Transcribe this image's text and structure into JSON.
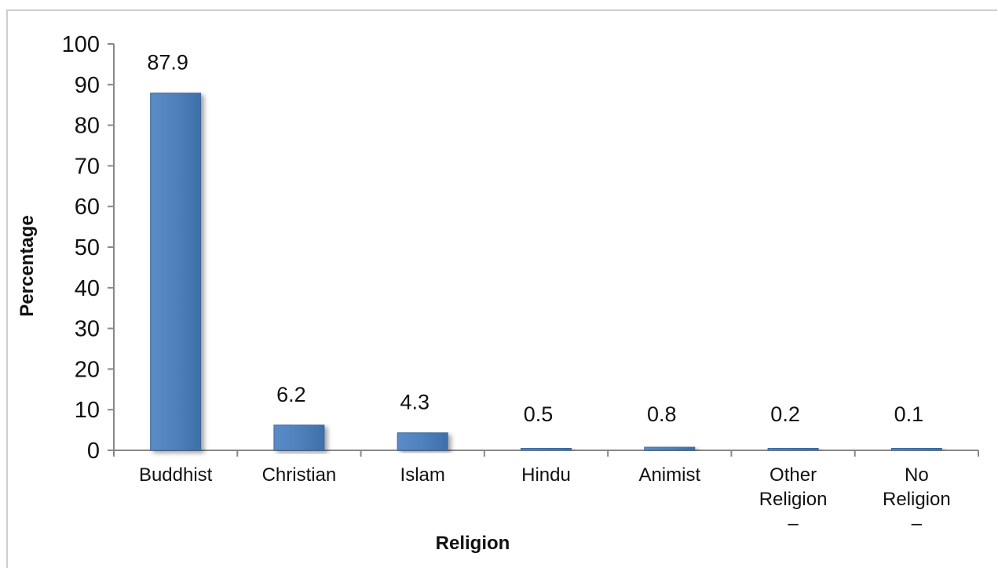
{
  "chart_data": {
    "type": "bar",
    "title": "",
    "xlabel": "Religion",
    "ylabel": "Percentage",
    "ylim": [
      0,
      100
    ],
    "yticks": [
      0,
      10,
      20,
      30,
      40,
      50,
      60,
      70,
      80,
      90,
      100
    ],
    "categories": [
      [
        "Buddhist"
      ],
      [
        "Christian"
      ],
      [
        "Islam"
      ],
      [
        "Hindu"
      ],
      [
        "Animist"
      ],
      [
        "Other",
        "Religion",
        "–"
      ],
      [
        "No",
        "Religion",
        "–"
      ]
    ],
    "values": [
      87.9,
      6.2,
      4.3,
      0.5,
      0.8,
      0.2,
      0.1
    ],
    "data_labels": [
      "87.9",
      "6.2",
      "4.3",
      "0.5",
      "0.8",
      "0.2",
      "0.1"
    ],
    "bar_color": "#4f81bd",
    "grid": false,
    "legend": "none"
  }
}
